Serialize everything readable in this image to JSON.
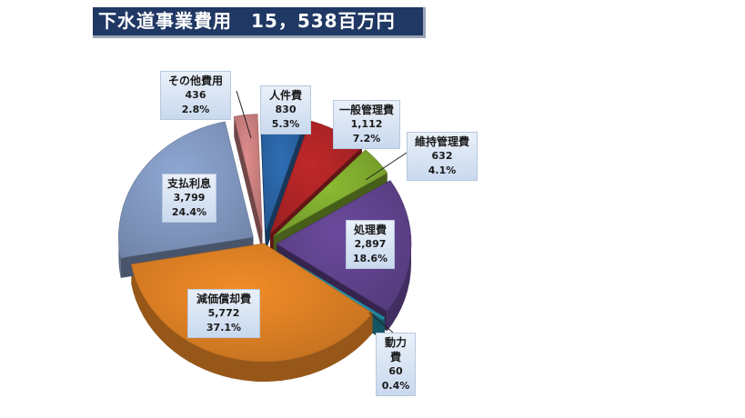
{
  "title": "下水道事業費用　15，538百万円",
  "colors": {
    "title_bg": "#203864",
    "label_bg": "#dce6f2"
  },
  "chart_data": {
    "type": "pie",
    "title": "下水道事業費用　15，538百万円",
    "slices": [
      {
        "name": "人件費",
        "value_label": "830",
        "value": 830,
        "percent_label": "5.3%",
        "percent": 5.3,
        "color": "#2e6db4",
        "exploded": true
      },
      {
        "name": "一般管理費",
        "value_label": "1,112",
        "value": 1112,
        "percent_label": "7.2%",
        "percent": 7.2,
        "color": "#c0282a",
        "exploded": true
      },
      {
        "name": "維持管理費",
        "value_label": "632",
        "value": 632,
        "percent_label": "4.1%",
        "percent": 4.1,
        "color": "#8cbc33",
        "exploded": true
      },
      {
        "name": "処理費",
        "value_label": "2,897",
        "value": 2897,
        "percent_label": "18.6%",
        "percent": 18.6,
        "color": "#6a4a9c",
        "exploded": true
      },
      {
        "name": "動力費",
        "value_label": "60",
        "value": 60,
        "percent_label": "0.4%",
        "percent": 0.4,
        "color": "#2aa8c4",
        "exploded": true
      },
      {
        "name": "減価償却費",
        "value_label": "5,772",
        "value": 5772,
        "percent_label": "37.1%",
        "percent": 37.1,
        "color": "#f28c28",
        "exploded": false
      },
      {
        "name": "支払利息",
        "value_label": "3,799",
        "value": 3799,
        "percent_label": "24.4%",
        "percent": 24.4,
        "color": "#8fa8d4",
        "exploded": true
      },
      {
        "name": "その他費用",
        "value_label": "436",
        "value": 436,
        "percent_label": "2.8%",
        "percent": 2.8,
        "color": "#e08c8c",
        "exploded": true
      }
    ]
  }
}
